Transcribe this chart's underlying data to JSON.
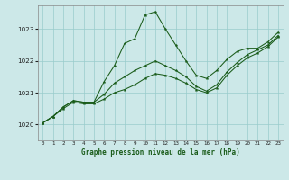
{
  "title": "Graphe pression niveau de la mer (hPa)",
  "background_color": "#cce8e8",
  "grid_color": "#99cccc",
  "line_color": "#1a5c1a",
  "xlim": [
    -0.5,
    23.5
  ],
  "ylim": [
    1019.5,
    1023.75
  ],
  "yticks": [
    1020,
    1021,
    1022,
    1023
  ],
  "x_labels": [
    "0",
    "1",
    "2",
    "3",
    "4",
    "5",
    "6",
    "7",
    "8",
    "9",
    "10",
    "11",
    "12",
    "13",
    "14",
    "15",
    "16",
    "17",
    "18",
    "19",
    "20",
    "21",
    "22",
    "23"
  ],
  "series": {
    "peak": [
      1020.05,
      1020.25,
      1020.55,
      1020.75,
      1020.7,
      1020.7,
      1021.35,
      1021.85,
      1022.55,
      1022.7,
      1023.45,
      1023.55,
      1023.0,
      1022.5,
      1022.0,
      1021.55,
      1021.45,
      1021.7,
      1022.05,
      1022.3,
      1022.4,
      1022.4,
      1022.6,
      1022.9
    ],
    "mid": [
      1020.05,
      1020.25,
      1020.55,
      1020.75,
      1020.7,
      1020.7,
      1020.95,
      1021.3,
      1021.5,
      1021.7,
      1021.85,
      1022.0,
      1021.85,
      1021.7,
      1021.5,
      1021.2,
      1021.05,
      1021.25,
      1021.65,
      1021.95,
      1022.2,
      1022.35,
      1022.5,
      1022.8
    ],
    "low": [
      1020.05,
      1020.25,
      1020.5,
      1020.7,
      1020.65,
      1020.65,
      1020.8,
      1021.0,
      1021.1,
      1021.25,
      1021.45,
      1021.6,
      1021.55,
      1021.45,
      1021.3,
      1021.1,
      1021.0,
      1021.15,
      1021.55,
      1021.85,
      1022.1,
      1022.25,
      1022.45,
      1022.75
    ]
  }
}
